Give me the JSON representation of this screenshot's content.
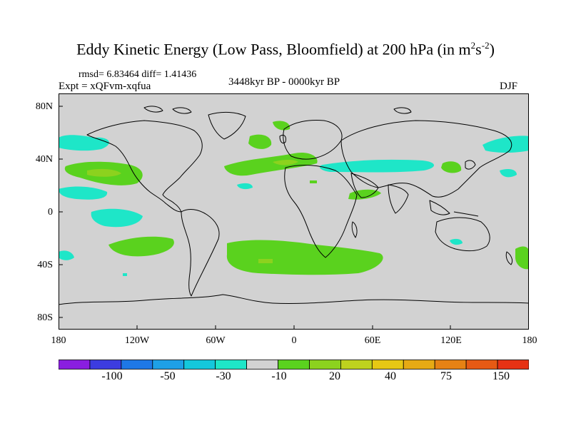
{
  "title": {
    "main": "Eddy Kinetic Energy (Low Pass, Bloomfield) at 200 hPa (in m",
    "sup1": "2",
    "mid": "s",
    "sup2": "-2",
    "end": ")"
  },
  "stats": {
    "rmsd_line": "rmsd= 6.83464 diff= 1.41436",
    "expt_line": "Expt = xQFvm-xqfua"
  },
  "period": "3448kyr BP - 0000kyr BP",
  "season": "DJF",
  "axes": {
    "lat_labels": [
      "80N",
      "40N",
      "0",
      "40S",
      "80S"
    ],
    "lon_labels": [
      "180",
      "120W",
      "60W",
      "0",
      "60E",
      "120E",
      "180"
    ]
  },
  "colorbar": {
    "colors": [
      "#8a1ee0",
      "#3c3ce0",
      "#1e78e6",
      "#1ea0e6",
      "#14c8dc",
      "#1ee6c8",
      "#d2d2d2",
      "#5ad21e",
      "#8cd21e",
      "#bed21e",
      "#e6c814",
      "#e6aa14",
      "#e68214",
      "#e65a14",
      "#e63214"
    ],
    "labels": [
      "-100",
      "-50",
      "-30",
      "-10",
      "20",
      "40",
      "75",
      "150"
    ]
  },
  "colors": {
    "background": "#d2d2d2",
    "positive_small": "#5ad21e",
    "positive_medium": "#8cd21e",
    "negative_small": "#1ee6c8",
    "negative_medium": "#14c8dc"
  }
}
